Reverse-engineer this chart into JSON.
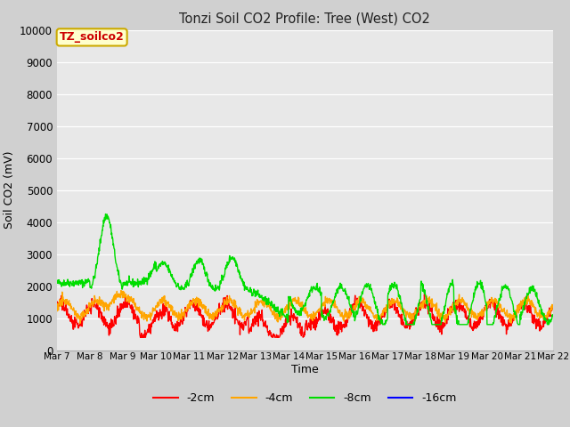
{
  "title": "Tonzi Soil CO2 Profile: Tree (West) CO2",
  "xlabel": "Time",
  "ylabel": "Soil CO2 (mV)",
  "ylim": [
    0,
    10000
  ],
  "yticks": [
    0,
    1000,
    2000,
    3000,
    4000,
    5000,
    6000,
    7000,
    8000,
    9000,
    10000
  ],
  "xtick_labels": [
    "Mar 7",
    "Mar 8",
    "Mar 9",
    "Mar 10",
    "Mar 11",
    "Mar 12",
    "Mar 13",
    "Mar 14",
    "Mar 15",
    "Mar 16",
    "Mar 17",
    "Mar 18",
    "Mar 19",
    "Mar 20",
    "Mar 21",
    "Mar 22"
  ],
  "colors": {
    "neg2cm": "#ff0000",
    "neg4cm": "#ffa500",
    "neg8cm": "#00dd00",
    "neg16cm": "#0000ff"
  },
  "legend_labels": [
    "-2cm",
    "-4cm",
    "-8cm",
    "-16cm"
  ],
  "annotation_text": "TZ_soilco2",
  "annotation_box_color": "#ffffcc",
  "annotation_text_color": "#cc0000",
  "annotation_border_color": "#ccaa00",
  "plot_bg_color": "#e8e8e8",
  "fig_bg_color": "#d0d0d0",
  "grid_color": "#ffffff",
  "figsize": [
    6.4,
    4.8
  ],
  "dpi": 100
}
